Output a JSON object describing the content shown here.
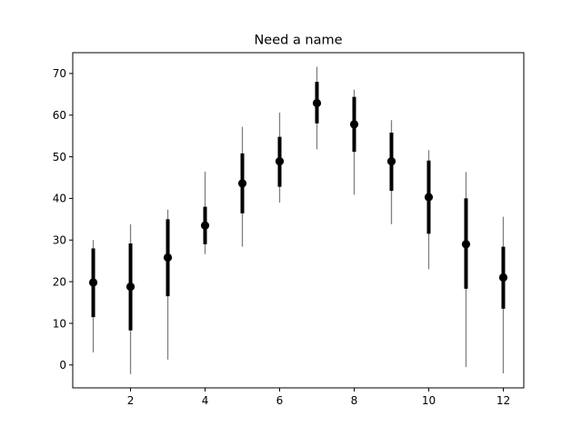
{
  "chart_data": {
    "type": "scatter",
    "title": "Need a name",
    "xlabel": "",
    "ylabel": "",
    "xlim": [
      0.45,
      12.55
    ],
    "ylim": [
      -5.5,
      75
    ],
    "x_ticks": [
      2,
      4,
      6,
      8,
      10,
      12
    ],
    "y_ticks": [
      0,
      10,
      20,
      30,
      40,
      50,
      60,
      70
    ],
    "grid": false,
    "legend": "none",
    "colors": {
      "marker": "#000000",
      "inner_bar": "#000000",
      "outer_bar": "#808080"
    },
    "points": [
      {
        "x": 1,
        "y": 19.8,
        "inner": [
          11.5,
          28.0
        ],
        "outer": [
          3.0,
          30.0
        ]
      },
      {
        "x": 2,
        "y": 18.8,
        "inner": [
          8.3,
          29.2
        ],
        "outer": [
          -2.2,
          33.8
        ]
      },
      {
        "x": 3,
        "y": 25.8,
        "inner": [
          16.5,
          35.0
        ],
        "outer": [
          1.3,
          37.3
        ]
      },
      {
        "x": 4,
        "y": 33.5,
        "inner": [
          29.0,
          38.0
        ],
        "outer": [
          26.6,
          46.4
        ]
      },
      {
        "x": 5,
        "y": 43.6,
        "inner": [
          36.4,
          50.8
        ],
        "outer": [
          28.4,
          57.2
        ]
      },
      {
        "x": 6,
        "y": 48.9,
        "inner": [
          42.8,
          54.8
        ],
        "outer": [
          39.0,
          60.6
        ]
      },
      {
        "x": 7,
        "y": 62.9,
        "inner": [
          58.0,
          68.0
        ],
        "outer": [
          51.8,
          71.6
        ]
      },
      {
        "x": 8,
        "y": 57.8,
        "inner": [
          51.2,
          64.4
        ],
        "outer": [
          40.9,
          66.1
        ]
      },
      {
        "x": 9,
        "y": 48.9,
        "inner": [
          41.8,
          55.8
        ],
        "outer": [
          33.8,
          58.8
        ]
      },
      {
        "x": 10,
        "y": 40.3,
        "inner": [
          31.5,
          49.1
        ],
        "outer": [
          23.0,
          51.6
        ]
      },
      {
        "x": 11,
        "y": 29.0,
        "inner": [
          18.3,
          40.0
        ],
        "outer": [
          -0.5,
          46.3
        ]
      },
      {
        "x": 12,
        "y": 21.0,
        "inner": [
          13.5,
          28.4
        ],
        "outer": [
          -2.0,
          35.6
        ]
      }
    ]
  }
}
